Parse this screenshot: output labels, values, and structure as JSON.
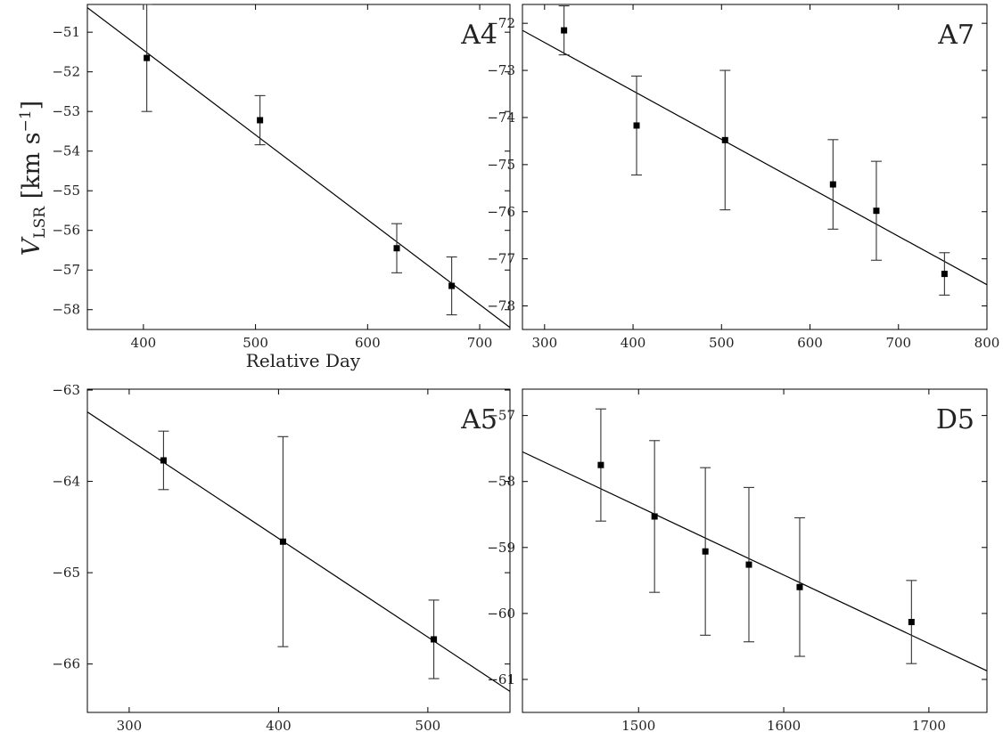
{
  "chart_data": [
    {
      "type": "scatter",
      "panel_label": "A4",
      "xlabel": "Relative Day",
      "xlim": [
        350,
        727
      ],
      "ylim": [
        -58.5,
        -50.3
      ],
      "xticks": [
        400,
        500,
        600,
        700
      ],
      "yticks": [
        -58,
        -57,
        -56,
        -55,
        -54,
        -53,
        -52,
        -51
      ],
      "points": [
        {
          "x": 403,
          "y": -51.65,
          "err": 1.35
        },
        {
          "x": 504,
          "y": -53.22,
          "err": 0.62
        },
        {
          "x": 626,
          "y": -56.45,
          "err": 0.62
        },
        {
          "x": 675,
          "y": -57.4,
          "err": 0.73
        }
      ],
      "fit": {
        "x": [
          350,
          727
        ],
        "y": [
          -50.38,
          -58.45
        ]
      }
    },
    {
      "type": "scatter",
      "panel_label": "A7",
      "xlabel": "",
      "xlim": [
        275,
        800
      ],
      "ylim": [
        -78.5,
        -71.6
      ],
      "xticks": [
        300,
        400,
        500,
        600,
        700,
        800
      ],
      "yticks": [
        -78,
        -77,
        -76,
        -75,
        -74,
        -73,
        -72
      ],
      "points": [
        {
          "x": 322,
          "y": -72.15,
          "err": 0.52
        },
        {
          "x": 404,
          "y": -74.17,
          "err": 1.05
        },
        {
          "x": 504,
          "y": -74.48,
          "err": 1.48
        },
        {
          "x": 626,
          "y": -75.42,
          "err": 0.95
        },
        {
          "x": 675,
          "y": -75.98,
          "err": 1.05
        },
        {
          "x": 752,
          "y": -77.32,
          "err": 0.45
        }
      ],
      "fit": {
        "x": [
          275,
          800
        ],
        "y": [
          -72.15,
          -77.55
        ]
      }
    },
    {
      "type": "scatter",
      "panel_label": "A5",
      "xlabel": "",
      "xlim": [
        272,
        555
      ],
      "ylim": [
        -66.53,
        -62.99
      ],
      "xticks": [
        300,
        400,
        500
      ],
      "yticks": [
        -66,
        -65,
        -64,
        -63
      ],
      "points": [
        {
          "x": 323,
          "y": -63.77,
          "err": 0.32
        },
        {
          "x": 403,
          "y": -64.66,
          "err": 1.15
        },
        {
          "x": 504,
          "y": -65.73,
          "err": 0.43
        }
      ],
      "fit": {
        "x": [
          272,
          555
        ],
        "y": [
          -63.24,
          -66.3
        ]
      }
    },
    {
      "type": "scatter",
      "panel_label": "D5",
      "xlabel": "",
      "xlim": [
        1420,
        1740
      ],
      "ylim": [
        -61.5,
        -56.6
      ],
      "xticks": [
        1500,
        1600,
        1700
      ],
      "yticks": [
        -61,
        -60,
        -59,
        -58,
        -57
      ],
      "points": [
        {
          "x": 1474,
          "y": -57.75,
          "err": 0.85
        },
        {
          "x": 1511,
          "y": -58.53,
          "err": 1.15
        },
        {
          "x": 1546,
          "y": -59.06,
          "err": 1.27
        },
        {
          "x": 1576,
          "y": -59.26,
          "err": 1.17
        },
        {
          "x": 1611,
          "y": -59.6,
          "err": 1.05
        },
        {
          "x": 1688,
          "y": -60.13,
          "err": 0.63
        }
      ],
      "fit": {
        "x": [
          1420,
          1740
        ],
        "y": [
          -57.55,
          -60.87
        ]
      }
    }
  ],
  "shared_ylabel": {
    "main": "V",
    "sub": "LSR",
    "unit": " [km s",
    "exp": "−1",
    "close": "]"
  }
}
